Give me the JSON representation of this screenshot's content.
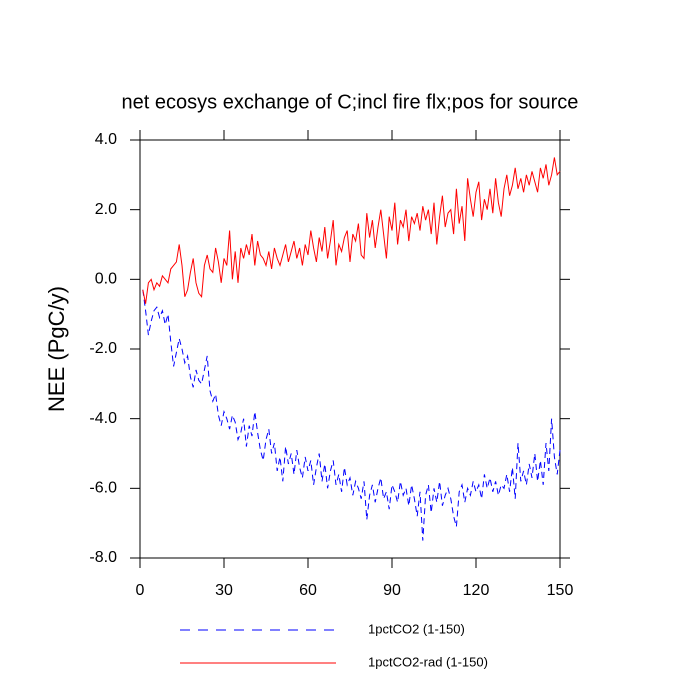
{
  "chart_data": {
    "type": "line",
    "title": "net ecosys exchange of C;incl fire flx;pos for source",
    "y_label": "NEE  (PgC/y)",
    "xlim": [
      0,
      150
    ],
    "ylim": [
      -8,
      4
    ],
    "xticks": [
      0,
      30,
      60,
      90,
      120,
      150
    ],
    "yticks": [
      {
        "value": 4,
        "label": "4.0"
      },
      {
        "value": 2,
        "label": "2.0"
      },
      {
        "value": 0,
        "label": "0.0"
      },
      {
        "value": -2,
        "label": "-2.0"
      },
      {
        "value": -4,
        "label": "-4.0"
      },
      {
        "value": -6,
        "label": "-6.0"
      },
      {
        "value": -8,
        "label": "-8.0"
      }
    ],
    "legend": "bottom",
    "x": [
      1,
      2,
      3,
      4,
      5,
      6,
      7,
      8,
      9,
      10,
      11,
      12,
      13,
      14,
      15,
      16,
      17,
      18,
      19,
      20,
      21,
      22,
      23,
      24,
      25,
      26,
      27,
      28,
      29,
      30,
      31,
      32,
      33,
      34,
      35,
      36,
      37,
      38,
      39,
      40,
      41,
      42,
      43,
      44,
      45,
      46,
      47,
      48,
      49,
      50,
      51,
      52,
      53,
      54,
      55,
      56,
      57,
      58,
      59,
      60,
      61,
      62,
      63,
      64,
      65,
      66,
      67,
      68,
      69,
      70,
      71,
      72,
      73,
      74,
      75,
      76,
      77,
      78,
      79,
      80,
      81,
      82,
      83,
      84,
      85,
      86,
      87,
      88,
      89,
      90,
      91,
      92,
      93,
      94,
      95,
      96,
      97,
      98,
      99,
      100,
      101,
      102,
      103,
      104,
      105,
      106,
      107,
      108,
      109,
      110,
      111,
      112,
      113,
      114,
      115,
      116,
      117,
      118,
      119,
      120,
      121,
      122,
      123,
      124,
      125,
      126,
      127,
      128,
      129,
      130,
      131,
      132,
      133,
      134,
      135,
      136,
      137,
      138,
      139,
      140,
      141,
      142,
      143,
      144,
      145,
      146,
      147,
      148,
      149,
      150
    ],
    "series": [
      {
        "name": "1pctCO2 (1-150)",
        "color": "#0000ff",
        "dash": true,
        "values": [
          -0.3,
          -0.9,
          -1.6,
          -1.2,
          -0.9,
          -0.8,
          -1.1,
          -0.9,
          -1.3,
          -1.0,
          -1.8,
          -2.5,
          -2.1,
          -1.7,
          -2.0,
          -2.4,
          -2.2,
          -2.8,
          -3.1,
          -2.6,
          -2.9,
          -3.0,
          -2.6,
          -2.2,
          -3.2,
          -3.5,
          -3.3,
          -3.9,
          -4.2,
          -3.8,
          -4.0,
          -4.3,
          -3.9,
          -4.1,
          -4.6,
          -4.4,
          -4.0,
          -4.8,
          -4.2,
          -4.5,
          -3.8,
          -4.4,
          -4.9,
          -5.2,
          -4.6,
          -4.3,
          -5.0,
          -4.7,
          -5.5,
          -5.1,
          -5.8,
          -4.8,
          -5.3,
          -5.0,
          -5.6,
          -4.9,
          -5.4,
          -5.7,
          -5.1,
          -5.5,
          -5.2,
          -5.9,
          -5.4,
          -5.0,
          -5.8,
          -5.3,
          -6.0,
          -5.5,
          -5.2,
          -5.9,
          -5.6,
          -6.1,
          -5.4,
          -5.9,
          -5.7,
          -6.2,
          -5.8,
          -6.0,
          -6.3,
          -5.8,
          -6.9,
          -6.2,
          -5.9,
          -6.4,
          -6.0,
          -5.7,
          -6.3,
          -6.1,
          -6.6,
          -5.9,
          -6.1,
          -6.4,
          -5.8,
          -6.2,
          -6.0,
          -6.5,
          -5.9,
          -6.3,
          -6.8,
          -6.1,
          -7.5,
          -6.2,
          -5.9,
          -6.7,
          -6.0,
          -6.4,
          -5.8,
          -6.5,
          -6.2,
          -6.0,
          -6.3,
          -6.8,
          -7.1,
          -6.1,
          -5.9,
          -6.4,
          -6.0,
          -6.2,
          -5.8,
          -6.1,
          -5.9,
          -6.3,
          -5.6,
          -6.0,
          -5.7,
          -6.1,
          -5.8,
          -6.2,
          -5.9,
          -6.0,
          -5.6,
          -6.1,
          -5.4,
          -6.3,
          -4.7,
          -5.8,
          -5.5,
          -5.9,
          -5.3,
          -5.7,
          -5.0,
          -5.8,
          -5.2,
          -5.9,
          -4.7,
          -5.5,
          -4.0,
          -5.1,
          -5.6,
          -4.9
        ]
      },
      {
        "name": "1pctCO2-rad (1-150)",
        "color": "#ff0000",
        "dash": false,
        "values": [
          -0.3,
          -0.7,
          -0.1,
          0.0,
          -0.3,
          -0.1,
          -0.2,
          0.1,
          0.0,
          -0.1,
          0.3,
          0.4,
          0.5,
          1.0,
          0.4,
          -0.5,
          -0.3,
          0.2,
          0.6,
          -0.1,
          -0.4,
          -0.5,
          0.4,
          0.7,
          0.3,
          0.2,
          0.9,
          0.5,
          -0.1,
          0.6,
          0.4,
          1.4,
          0.0,
          0.8,
          -0.1,
          0.9,
          0.6,
          1.0,
          0.7,
          1.3,
          0.4,
          1.1,
          0.7,
          0.6,
          0.4,
          0.8,
          0.3,
          0.9,
          0.6,
          0.4,
          0.7,
          1.0,
          0.5,
          0.8,
          1.1,
          0.6,
          0.9,
          0.4,
          1.0,
          0.7,
          1.4,
          0.9,
          0.5,
          1.2,
          0.8,
          1.5,
          0.6,
          1.1,
          1.7,
          0.4,
          1.0,
          0.8,
          1.2,
          1.4,
          0.5,
          1.3,
          1.1,
          1.6,
          0.7,
          0.6,
          1.9,
          1.2,
          1.7,
          0.9,
          1.5,
          2.0,
          1.3,
          0.6,
          1.8,
          1.4,
          2.2,
          1.0,
          1.7,
          1.5,
          2.0,
          1.1,
          1.8,
          1.6,
          1.9,
          1.4,
          2.1,
          1.7,
          2.0,
          1.3,
          2.2,
          1.0,
          1.8,
          2.4,
          1.5,
          1.9,
          2.0,
          1.3,
          2.6,
          1.6,
          2.1,
          1.1,
          2.9,
          2.3,
          1.8,
          2.5,
          2.8,
          1.7,
          2.3,
          2.0,
          2.6,
          1.9,
          2.9,
          2.2,
          1.8,
          2.6,
          3.0,
          2.4,
          2.7,
          3.2,
          2.6,
          2.9,
          2.5,
          3.0,
          2.7,
          3.1,
          2.8,
          2.5,
          3.2,
          2.9,
          3.3,
          2.7,
          3.0,
          3.5,
          3.0,
          3.1
        ]
      }
    ]
  }
}
